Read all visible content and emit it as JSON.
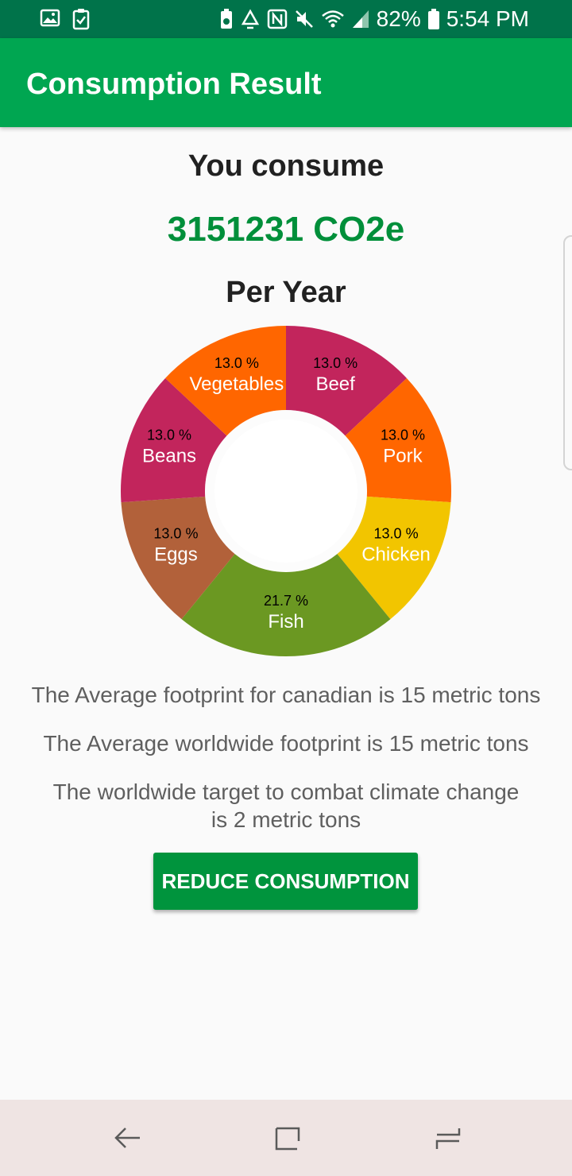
{
  "status_bar": {
    "battery": "82%",
    "time": "5:54 PM",
    "icons": [
      "gallery-icon",
      "clipboard-check-icon",
      "battery-saver-icon",
      "recycle-icon",
      "nfc-icon",
      "mute-icon",
      "wifi-icon",
      "signal-icon",
      "battery-icon"
    ]
  },
  "app_bar": {
    "title": "Consumption Result"
  },
  "summary": {
    "heading": "You consume",
    "value": "3151231 CO2e",
    "period": "Per Year"
  },
  "chart_data": {
    "type": "pie",
    "donut": true,
    "categories": [
      "Beef",
      "Pork",
      "Chicken",
      "Fish",
      "Eggs",
      "Beans",
      "Vegetables"
    ],
    "values": [
      13.0,
      13.0,
      13.0,
      21.7,
      13.0,
      13.0,
      13.0
    ],
    "value_labels": [
      "13.0 %",
      "13.0 %",
      "13.0 %",
      "21.7 %",
      "13.0 %",
      "13.0 %",
      "13.0 %"
    ],
    "colors": [
      "#c2255c",
      "#ff6600",
      "#f2c500",
      "#6b9822",
      "#b2613a",
      "#c2255c",
      "#ff6600"
    ],
    "start_angle_deg": 0,
    "direction": "clockwise"
  },
  "info": {
    "canada_average": "The Average footprint for canadian is 15 metric tons",
    "world_average": "The Average worldwide footprint is 15 metric tons",
    "target_line1": "The worldwide target to combat climate change",
    "target_line2": "is 2 metric tons"
  },
  "actions": {
    "reduce_label": "REDUCE CONSUMPTION"
  },
  "nav_bar": {
    "icons": [
      "back-icon",
      "recents-icon",
      "home-icon"
    ]
  }
}
